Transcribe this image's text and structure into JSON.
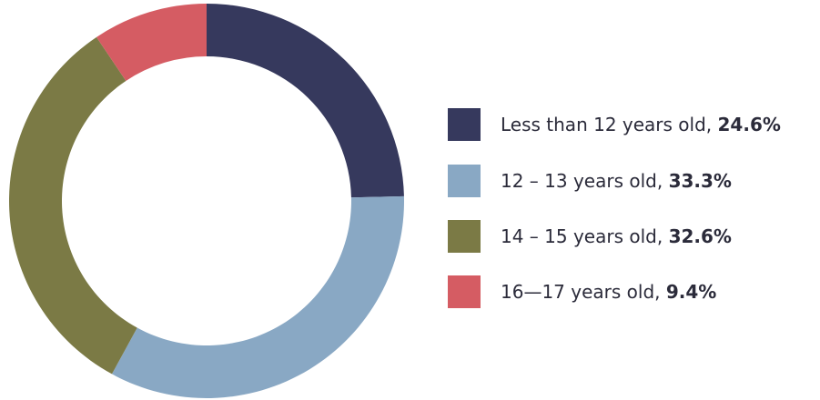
{
  "chart_data": {
    "type": "pie",
    "donut": true,
    "legend_position": "right",
    "slices": [
      {
        "label": "Less than 12 years old",
        "value": 24.6,
        "value_label": "24.6%",
        "color": "#36395d"
      },
      {
        "label": "12 – 13 years old",
        "value": 33.3,
        "value_label": "33.3%",
        "color": "#89a8c4"
      },
      {
        "label": "14 – 15 years old",
        "value": 32.6,
        "value_label": "32.6%",
        "color": "#7b7a45"
      },
      {
        "label": "16—17 years old",
        "value": 9.4,
        "value_label": "9.4%",
        "color": "#d55c63"
      }
    ]
  }
}
